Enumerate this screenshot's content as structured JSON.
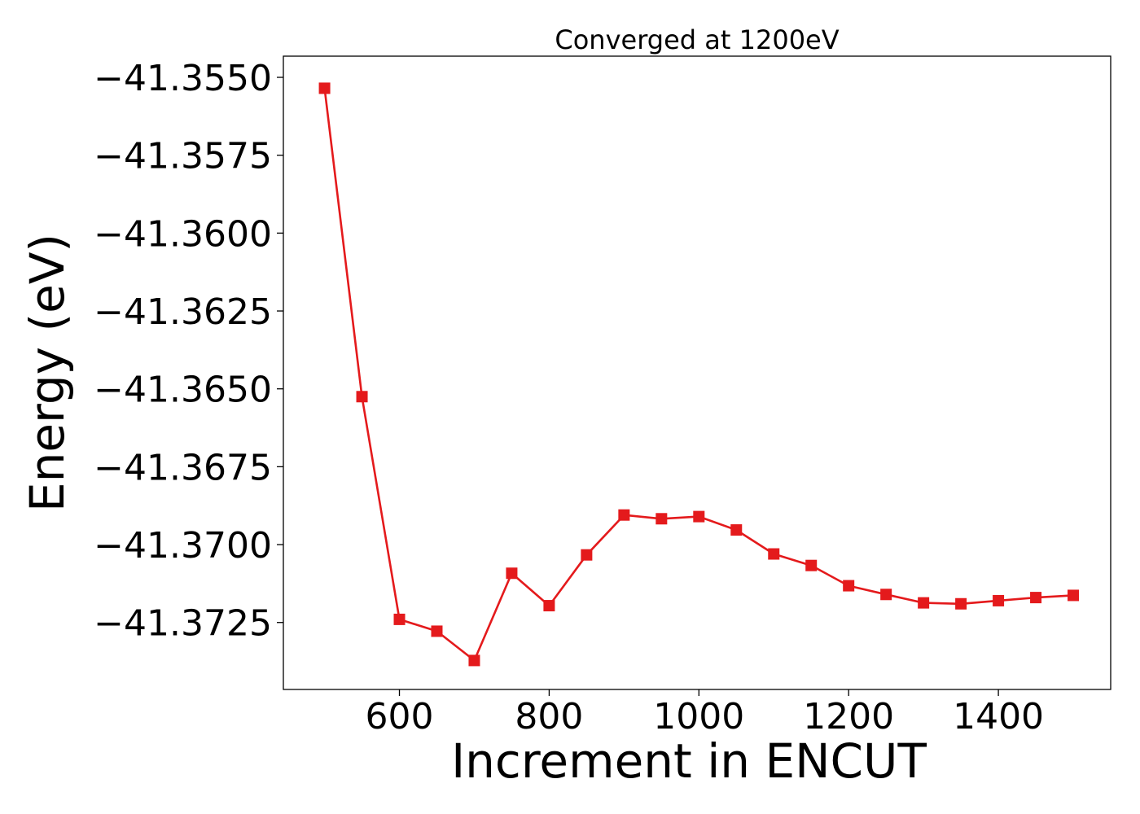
{
  "chart_data": {
    "type": "line",
    "title": "Converged at 1200eV",
    "xlabel": "Increment in ENCUT",
    "ylabel": "Energy (eV)",
    "xlim": [
      445,
      1550
    ],
    "ylim": [
      -41.37465,
      -41.35432
    ],
    "xticks": [
      600,
      800,
      1000,
      1200,
      1400
    ],
    "yticks": [
      -41.355,
      -41.3575,
      -41.36,
      -41.3625,
      -41.365,
      -41.3675,
      -41.37,
      -41.3725
    ],
    "ytick_labels": [
      "−41.3550",
      "−41.3575",
      "−41.3600",
      "−41.3625",
      "−41.3650",
      "−41.3675",
      "−41.3700",
      "−41.3725"
    ],
    "grid": false,
    "series": [
      {
        "color": "#e41a1c",
        "marker": "square",
        "x": [
          500,
          550,
          600,
          650,
          700,
          750,
          800,
          850,
          900,
          950,
          1000,
          1050,
          1100,
          1150,
          1200,
          1250,
          1300,
          1350,
          1400,
          1450,
          1500
        ],
        "y": [
          -41.35535,
          -41.36525,
          -41.3724,
          -41.37278,
          -41.37372,
          -41.37092,
          -41.37196,
          -41.37033,
          -41.36905,
          -41.36917,
          -41.3691,
          -41.36953,
          -41.3703,
          -41.37067,
          -41.37132,
          -41.3716,
          -41.37187,
          -41.3719,
          -41.3718,
          -41.3717,
          -41.37163
        ]
      }
    ]
  }
}
